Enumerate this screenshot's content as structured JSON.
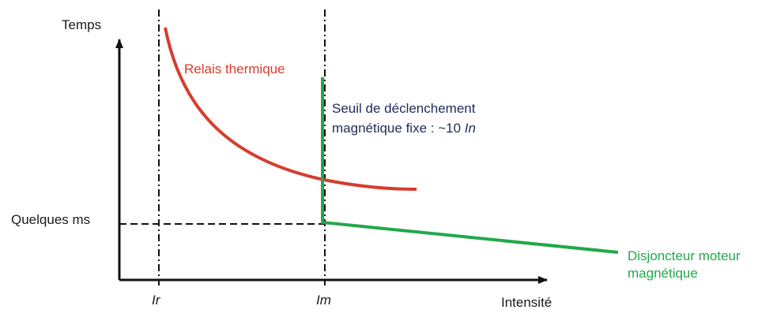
{
  "axes": {
    "y_label": "Temps",
    "x_label": "Intensité"
  },
  "markers": {
    "ir": "Ir",
    "im": "Im",
    "quelques_ms": "Quelques ms"
  },
  "curves": {
    "thermal_label": "Relais thermique",
    "breaker_label_line1": "Disjoncteur moteur",
    "breaker_label_line2": "magnétique"
  },
  "annotation": {
    "line1": "Seuil de déclenchement",
    "line2_prefix": "magnétique fixe : ~10 ",
    "line2_symbol": "In"
  },
  "colors": {
    "thermal": "#d63d2e",
    "breaker": "#22a84a",
    "annotation": "#1f2a5a",
    "axes": "#111111"
  }
}
